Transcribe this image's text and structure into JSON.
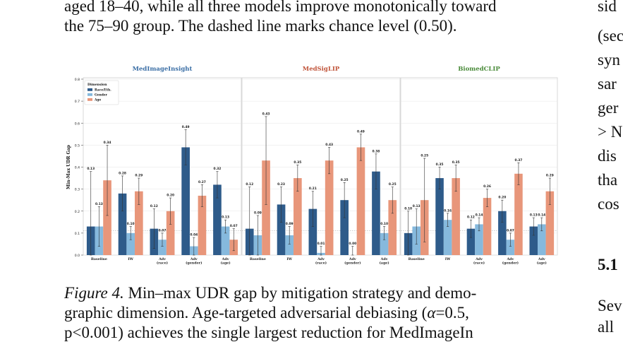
{
  "text_top": {
    "line1": "aged 18–40, while all three models improve monotonically toward",
    "line2": "the 75–90 group. The dashed line marks chance level (0.50)."
  },
  "right_column": {
    "lines": [
      "sid",
      "(sec",
      "syn",
      "sar",
      "ger",
      "> N",
      "dis",
      "tha",
      "cos"
    ],
    "heading": "5.1",
    "after": [
      "Sev",
      "all"
    ]
  },
  "caption": {
    "label": "Figure 4.",
    "line1": "Min–max UDR gap by mitigation strategy and demo-",
    "line2_a": "graphic dimension. Age-targeted adversarial debiasing (",
    "alpha": "α",
    "line2_b": "=0.5,",
    "line3": "p<0.001) achieves the single largest reduction for MedImageIn"
  },
  "chart_data": [
    {
      "type": "bar",
      "title": "MedImageInsight",
      "title_color": "#3a6ea5",
      "ylabel": "Min-Max UDR Gap",
      "ylim": [
        0,
        0.8
      ],
      "yticks": [
        "0.0",
        "0.1",
        "0.2",
        "0.3",
        "0.4",
        "0.5",
        "0.6",
        "0.7",
        "0.8"
      ],
      "categories": [
        "Baseline",
        "IW",
        "Adv\n(race)",
        "Adv\n(gender)",
        "Adv\n(age)"
      ],
      "legend": {
        "title": "Dimension",
        "position": "top-left"
      },
      "series": [
        {
          "name": "Race/Eth.",
          "color": "#2e5b8a",
          "values": [
            0.13,
            0.28,
            0.12,
            0.49,
            0.32
          ],
          "err": [
            0.25,
            0.08,
            0.09,
            0.08,
            0.06
          ]
        },
        {
          "name": "Gender",
          "color": "#86b9dd",
          "values": [
            0.13,
            0.1,
            0.07,
            0.04,
            0.13
          ],
          "err": [
            0.09,
            0.03,
            0.03,
            0.04,
            0.03
          ]
        },
        {
          "name": "Age",
          "color": "#e8967a",
          "values": [
            0.34,
            0.29,
            0.2,
            0.27,
            0.07
          ],
          "err": [
            0.16,
            0.06,
            0.06,
            0.05,
            0.05
          ]
        }
      ]
    },
    {
      "type": "bar",
      "title": "MedSigLIP",
      "title_color": "#c0543a",
      "ylim": [
        0,
        0.8
      ],
      "categories": [
        "Baseline",
        "IW",
        "Adv\n(race)",
        "Adv\n(gender)",
        "Adv\n(age)"
      ],
      "series": [
        {
          "name": "Race/Eth.",
          "color": "#2e5b8a",
          "values": [
            0.12,
            0.23,
            0.21,
            0.25,
            0.38
          ],
          "err": [
            0.19,
            0.08,
            0.08,
            0.08,
            0.08
          ]
        },
        {
          "name": "Gender",
          "color": "#86b9dd",
          "values": [
            0.09,
            0.09,
            0.01,
            0.0,
            0.1
          ],
          "err": [
            0.09,
            0.04,
            0.03,
            0.04,
            0.03
          ]
        },
        {
          "name": "Age",
          "color": "#e8967a",
          "values": [
            0.43,
            0.35,
            0.43,
            0.49,
            0.25
          ],
          "err": [
            0.2,
            0.06,
            0.06,
            0.06,
            0.06
          ]
        }
      ]
    },
    {
      "type": "bar",
      "title": "BiomedCLIP",
      "title_color": "#4a8b3a",
      "ylim": [
        0,
        0.8
      ],
      "categories": [
        "Baseline",
        "IW",
        "Adv\n(race)",
        "Adv\n(gender)",
        "Adv\n(age)"
      ],
      "series": [
        {
          "name": "Race/Eth.",
          "color": "#2e5b8a",
          "values": [
            0.1,
            0.35,
            0.12,
            0.2,
            0.13
          ],
          "err": [
            0.1,
            0.05,
            0.04,
            0.05,
            0.04
          ]
        },
        {
          "name": "Gender",
          "color": "#86b9dd",
          "values": [
            0.13,
            0.16,
            0.14,
            0.07,
            0.14
          ],
          "err": [
            0.08,
            0.03,
            0.03,
            0.03,
            0.03
          ]
        },
        {
          "name": "Age",
          "color": "#e8967a",
          "values": [
            0.25,
            0.35,
            0.26,
            0.37,
            0.29
          ],
          "err": [
            0.19,
            0.06,
            0.04,
            0.05,
            0.06
          ]
        }
      ]
    }
  ]
}
